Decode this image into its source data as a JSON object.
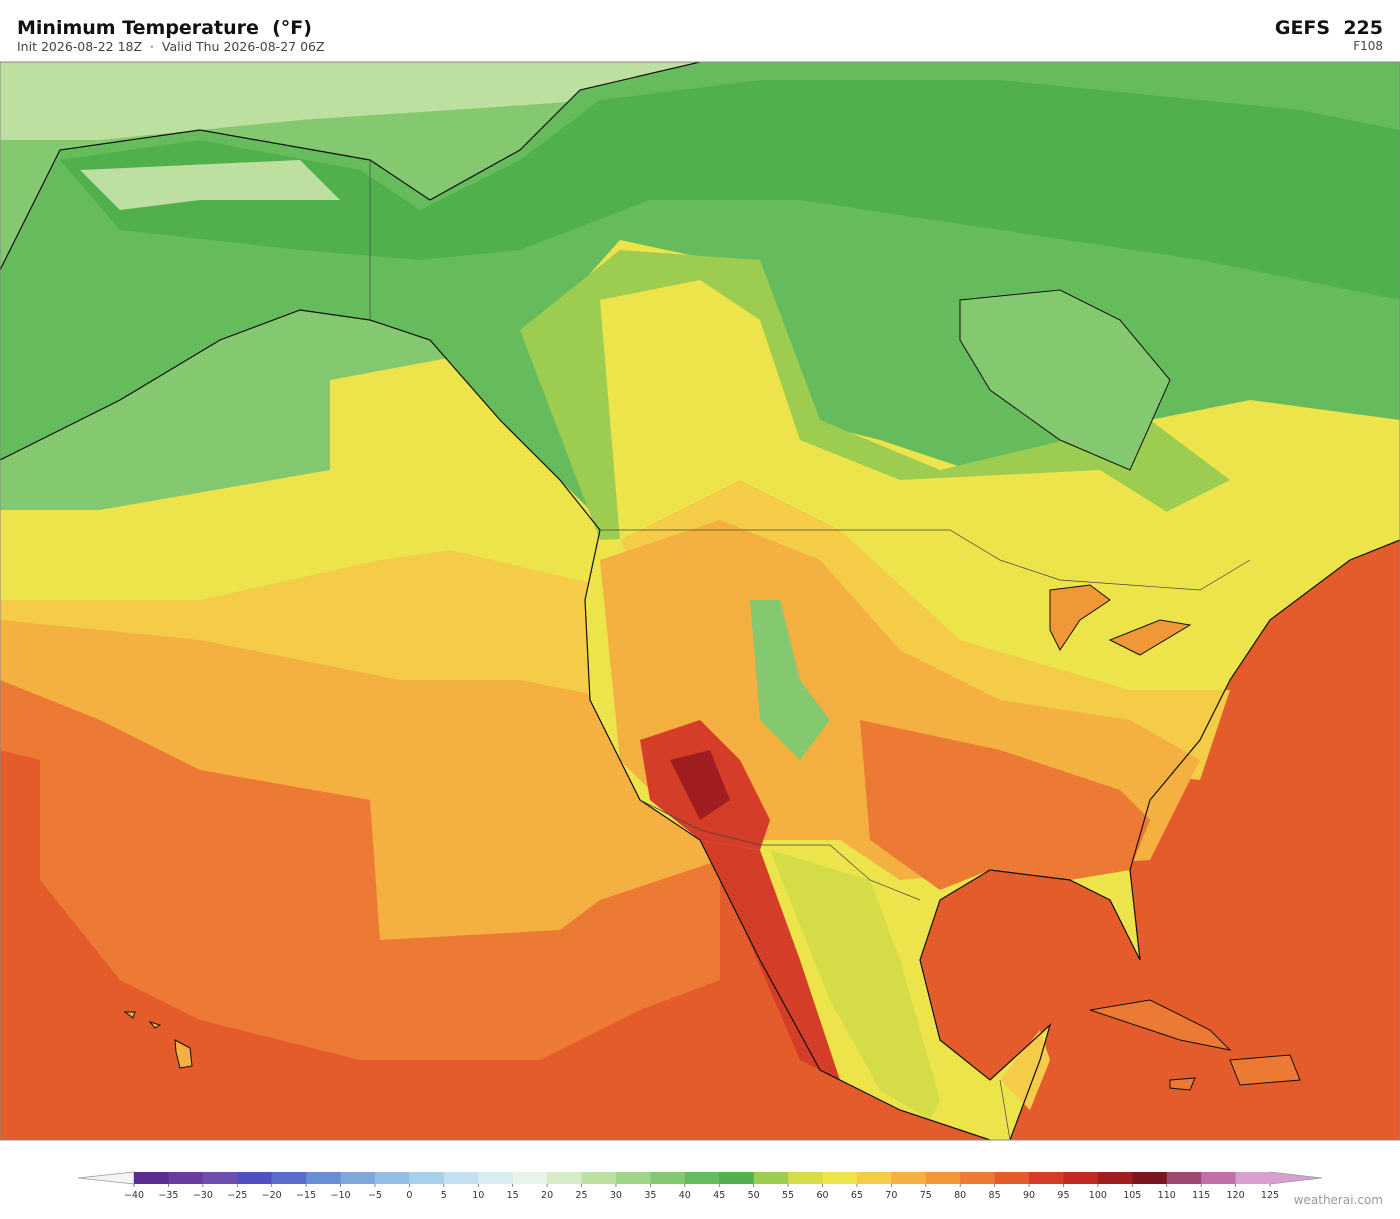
{
  "header": {
    "title": "Minimum Temperature  (°F)",
    "subtitle": "Init 2026-08-22 18Z  ·  Valid Thu 2026-08-27 06Z",
    "model": "GEFS  225",
    "forecast_hour": "F108"
  },
  "colorbar": {
    "ticks": [
      {
        "value": -40,
        "label": "−40"
      },
      {
        "value": -35,
        "label": "−35"
      },
      {
        "value": -30,
        "label": "−30"
      },
      {
        "value": -25,
        "label": "−25"
      },
      {
        "value": -20,
        "label": "−20"
      },
      {
        "value": -15,
        "label": "−15"
      },
      {
        "value": -10,
        "label": "−10"
      },
      {
        "value": -5,
        "label": "−5"
      },
      0,
      5,
      10,
      15,
      20,
      25,
      30,
      35,
      40,
      45,
      50,
      55,
      60,
      65,
      70,
      75,
      80,
      85,
      90,
      95,
      100,
      105,
      110,
      115,
      120,
      125
    ],
    "colors": [
      "#5b2d91",
      "#6a3a9c",
      "#6e4fb0",
      "#5050c0",
      "#5a6ccc",
      "#6a8ed6",
      "#80a8dc",
      "#94bee4",
      "#a8d0ea",
      "#c2e0f0",
      "#d8ecf2",
      "#e8f4ea",
      "#d6ecc8",
      "#bde0a0",
      "#a0d486",
      "#84c870",
      "#66bc5c",
      "#50b04c",
      "#9ccc50",
      "#d4dc48",
      "#ece44a",
      "#f4cc48",
      "#f4b040",
      "#f09838",
      "#ec7a34",
      "#e45c2c",
      "#d43e28",
      "#c02c24",
      "#a01e20",
      "#7a1620",
      "#9c4870",
      "#c070a8",
      "#d8a0d0"
    ]
  },
  "watermark": "weatherai.com"
}
